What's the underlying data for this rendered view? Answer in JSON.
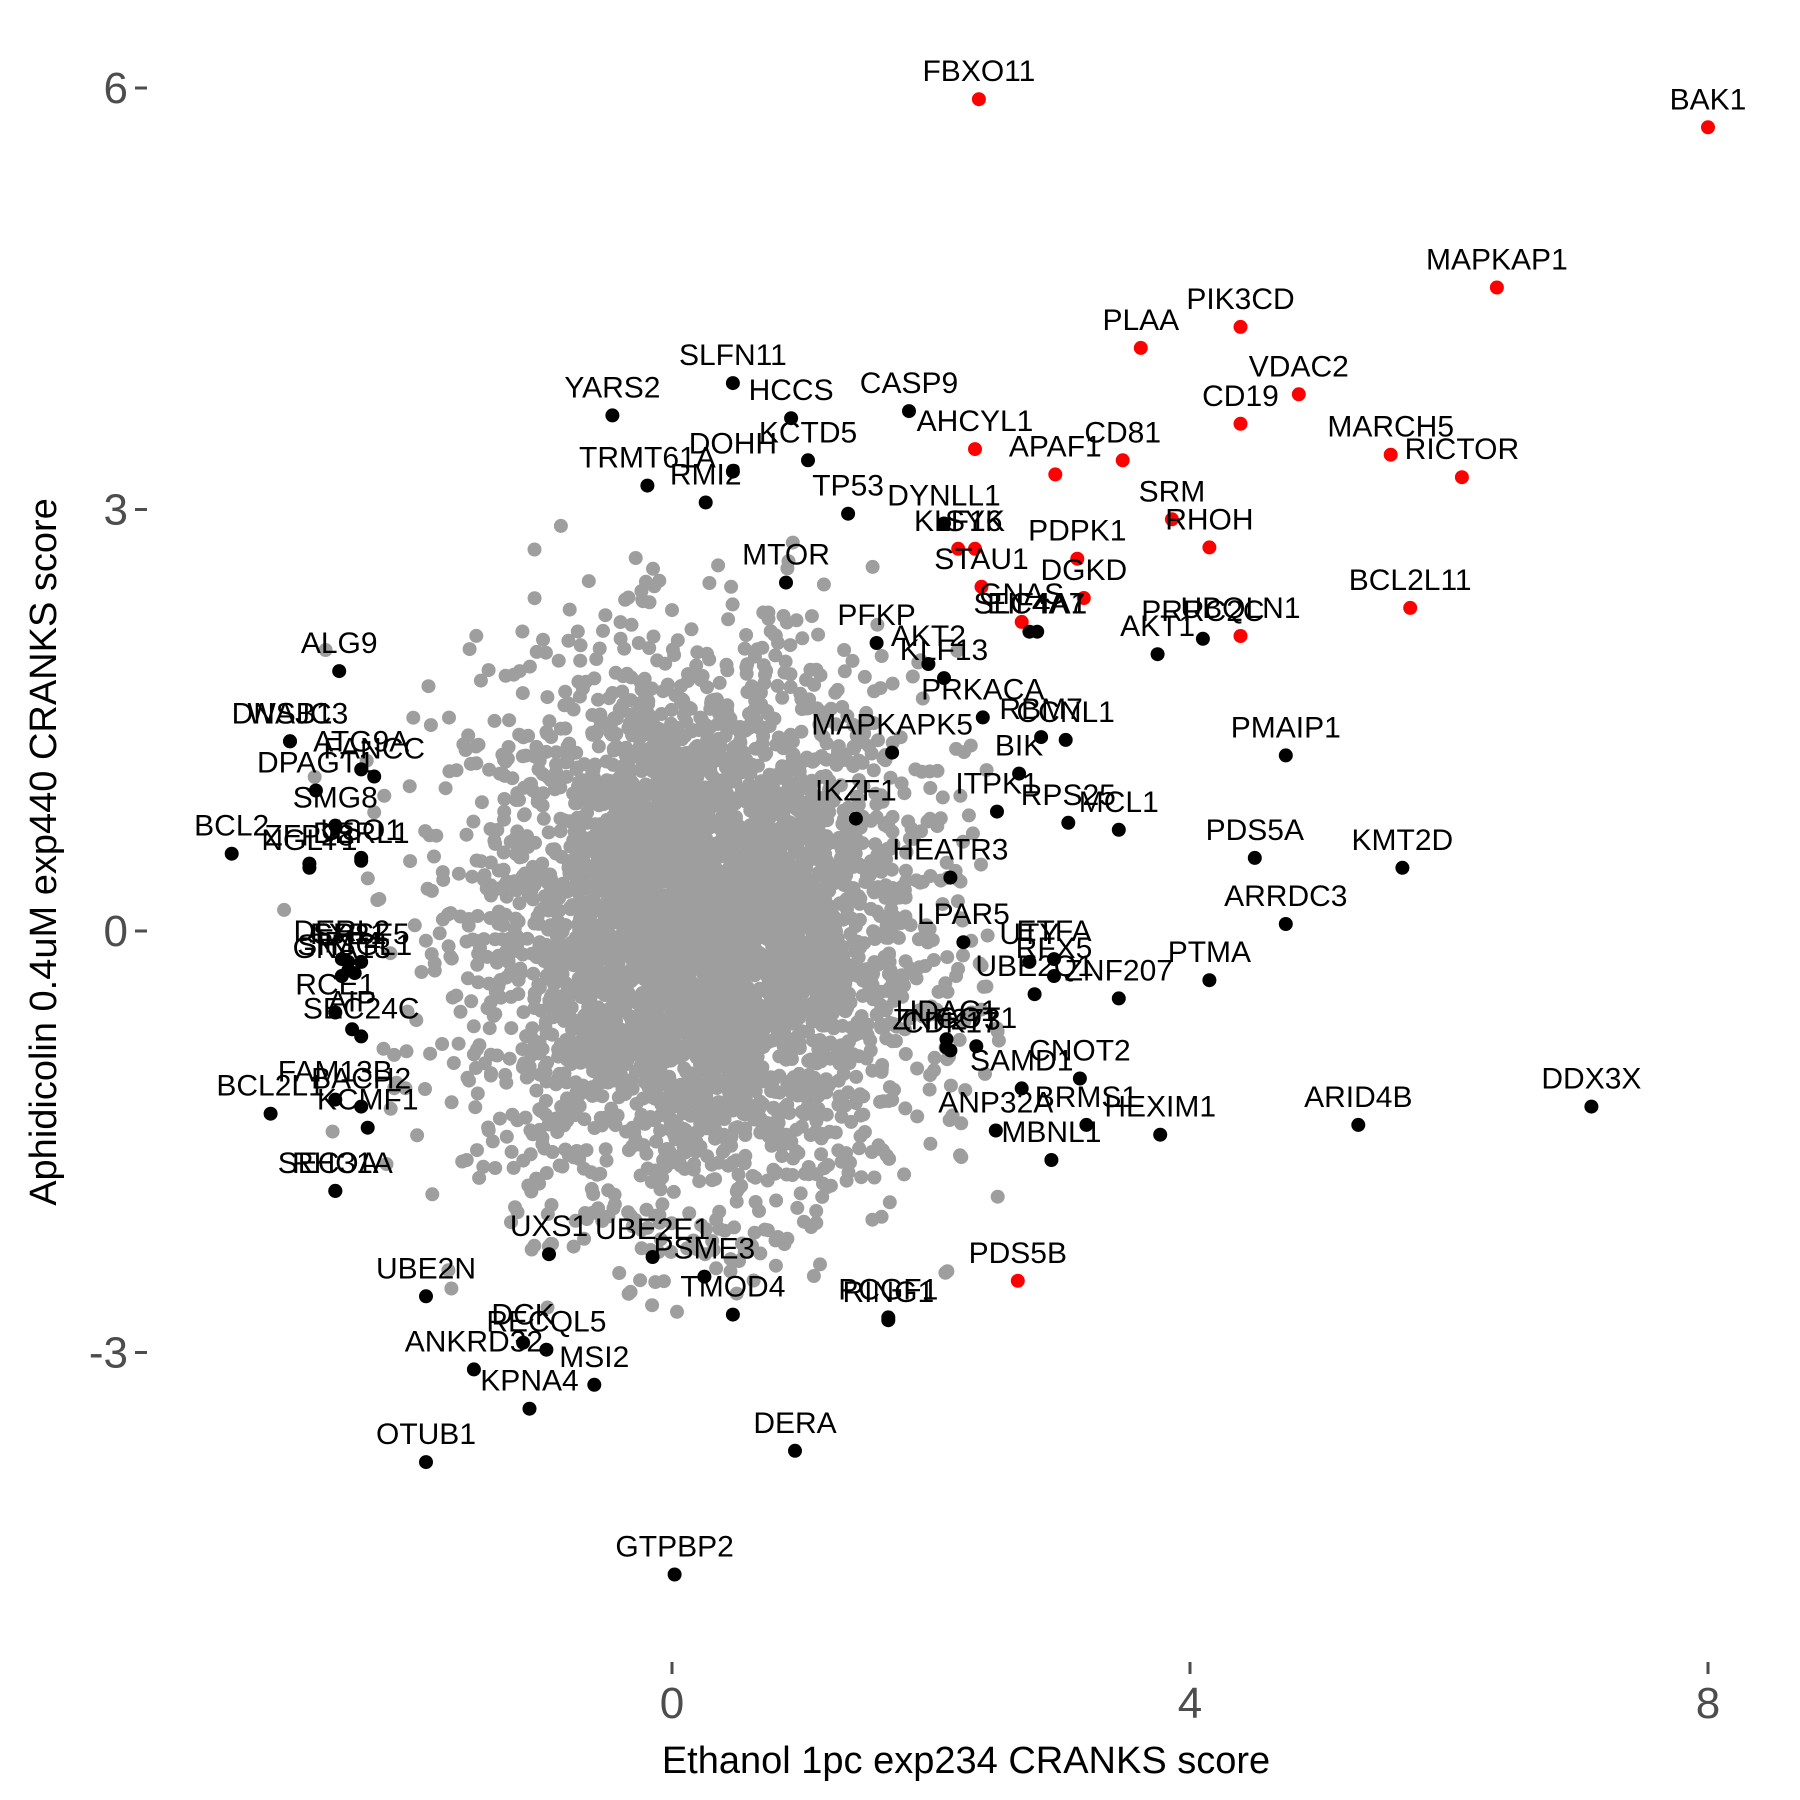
{
  "chart_data": {
    "type": "scatter",
    "title": "",
    "xlabel": "Ethanol 1pc exp234 CRANKS score",
    "ylabel": "Aphidicolin 0.4uM exp440 CRANKS score",
    "xlim": [
      -3.2,
      8.3
    ],
    "ylim": [
      -5.2,
      6.5
    ],
    "x_ticks": [
      0,
      4,
      8
    ],
    "x_tick_labels": [
      "0",
      "4",
      "8"
    ],
    "y_ticks": [
      -3,
      0,
      3,
      6
    ],
    "y_tick_labels": [
      "-3",
      "0",
      "3",
      "6"
    ],
    "grid": false,
    "legend": "none",
    "colors": {
      "background": "#4d4d4d",
      "non_hit": "#9e9e9e",
      "hit": "#000000",
      "top_hit": "#ff0000"
    },
    "background_cloud": {
      "color": "non_hit",
      "center": [
        0.2,
        0.0
      ],
      "spread": [
        0.85,
        0.95
      ],
      "count": 4200
    },
    "labeled_points": [
      {
        "gene": "FBXO11",
        "x": 2.37,
        "y": 5.92,
        "color": "top_hit"
      },
      {
        "gene": "BAK1",
        "x": 8.0,
        "y": 5.72,
        "color": "top_hit"
      },
      {
        "gene": "MAPKAP1",
        "x": 6.37,
        "y": 4.58,
        "color": "top_hit"
      },
      {
        "gene": "PIK3CD",
        "x": 4.39,
        "y": 4.3,
        "color": "top_hit"
      },
      {
        "gene": "PLAA",
        "x": 3.62,
        "y": 4.15,
        "color": "top_hit"
      },
      {
        "gene": "VDAC2",
        "x": 4.84,
        "y": 3.82,
        "color": "top_hit"
      },
      {
        "gene": "MARCH5",
        "x": 5.55,
        "y": 3.39,
        "color": "top_hit"
      },
      {
        "gene": "RICTOR",
        "x": 6.1,
        "y": 3.23,
        "color": "top_hit"
      },
      {
        "gene": "AHCYL1",
        "x": 2.34,
        "y": 3.43,
        "color": "top_hit"
      },
      {
        "gene": "CD81",
        "x": 3.48,
        "y": 3.35,
        "color": "top_hit"
      },
      {
        "gene": "CD19",
        "x": 4.39,
        "y": 3.61,
        "color": "top_hit"
      },
      {
        "gene": "APAF1",
        "x": 2.96,
        "y": 3.25,
        "color": "top_hit"
      },
      {
        "gene": "KLF16",
        "x": 2.21,
        "y": 2.72,
        "color": "top_hit"
      },
      {
        "gene": "SYK",
        "x": 2.34,
        "y": 2.72,
        "color": "top_hit"
      },
      {
        "gene": "PDPK1",
        "x": 3.13,
        "y": 2.65,
        "color": "top_hit"
      },
      {
        "gene": "SRM",
        "x": 3.86,
        "y": 2.93,
        "color": "top_hit"
      },
      {
        "gene": "RHOH",
        "x": 4.15,
        "y": 2.73,
        "color": "top_hit"
      },
      {
        "gene": "BCL2L11",
        "x": 5.7,
        "y": 2.3,
        "color": "top_hit"
      },
      {
        "gene": "STAU1",
        "x": 2.39,
        "y": 2.45,
        "color": "top_hit"
      },
      {
        "gene": "DGKD",
        "x": 3.18,
        "y": 2.37,
        "color": "top_hit"
      },
      {
        "gene": "UBQLN1",
        "x": 4.39,
        "y": 2.1,
        "color": "top_hit"
      },
      {
        "gene": "GNAS",
        "x": 2.7,
        "y": 2.2,
        "color": "top_hit"
      },
      {
        "gene": "PDS5B",
        "x": 2.67,
        "y": -2.49,
        "color": "top_hit"
      },
      {
        "gene": "SLFN11",
        "x": 0.47,
        "y": 3.9,
        "color": "hit"
      },
      {
        "gene": "HCCS",
        "x": 0.92,
        "y": 3.65,
        "color": "hit"
      },
      {
        "gene": "CASP9",
        "x": 1.83,
        "y": 3.7,
        "color": "hit"
      },
      {
        "gene": "YARS2",
        "x": -0.46,
        "y": 3.67,
        "color": "hit"
      },
      {
        "gene": "KCTD5",
        "x": 1.05,
        "y": 3.35,
        "color": "hit"
      },
      {
        "gene": "DOHH",
        "x": 0.47,
        "y": 3.27,
        "color": "hit"
      },
      {
        "gene": "TRMT61A",
        "x": -0.19,
        "y": 3.17,
        "color": "hit"
      },
      {
        "gene": "RMI2",
        "x": 0.26,
        "y": 3.05,
        "color": "hit"
      },
      {
        "gene": "TP53",
        "x": 1.36,
        "y": 2.97,
        "color": "hit"
      },
      {
        "gene": "DYNLL1",
        "x": 2.1,
        "y": 2.9,
        "color": "hit"
      },
      {
        "gene": "MTOR",
        "x": 0.88,
        "y": 2.48,
        "color": "hit"
      },
      {
        "gene": "AKT2",
        "x": 1.98,
        "y": 1.9,
        "color": "hit"
      },
      {
        "gene": "PFKP",
        "x": 1.58,
        "y": 2.05,
        "color": "hit"
      },
      {
        "gene": "KLF13",
        "x": 2.1,
        "y": 1.8,
        "color": "hit"
      },
      {
        "gene": "SLC4A7",
        "x": 2.76,
        "y": 2.13,
        "color": "hit"
      },
      {
        "gene": "AKT1",
        "x": 3.75,
        "y": 1.97,
        "color": "hit"
      },
      {
        "gene": "PRRC2C",
        "x": 4.1,
        "y": 2.08,
        "color": "hit"
      },
      {
        "gene": "EIF4A1",
        "x": 2.82,
        "y": 2.13,
        "color": "hit"
      },
      {
        "gene": "PRKACA",
        "x": 2.4,
        "y": 1.52,
        "color": "hit"
      },
      {
        "gene": "MAPKAPK5",
        "x": 1.7,
        "y": 1.27,
        "color": "hit"
      },
      {
        "gene": "CCNL1",
        "x": 3.04,
        "y": 1.36,
        "color": "hit"
      },
      {
        "gene": "PMAIP1",
        "x": 4.74,
        "y": 1.25,
        "color": "hit"
      },
      {
        "gene": "RBM7",
        "x": 2.85,
        "y": 1.38,
        "color": "hit"
      },
      {
        "gene": "BIK",
        "x": 2.68,
        "y": 1.12,
        "color": "hit"
      },
      {
        "gene": "IKZF1",
        "x": 1.42,
        "y": 0.8,
        "color": "hit"
      },
      {
        "gene": "ITPK1",
        "x": 2.51,
        "y": 0.85,
        "color": "hit"
      },
      {
        "gene": "RPS25",
        "x": 3.06,
        "y": 0.77,
        "color": "hit"
      },
      {
        "gene": "MCL1",
        "x": 3.45,
        "y": 0.72,
        "color": "hit"
      },
      {
        "gene": "PDS5A",
        "x": 4.5,
        "y": 0.52,
        "color": "hit"
      },
      {
        "gene": "KMT2D",
        "x": 5.64,
        "y": 0.45,
        "color": "hit"
      },
      {
        "gene": "HEATR3",
        "x": 2.15,
        "y": 0.38,
        "color": "hit"
      },
      {
        "gene": "ARRDC3",
        "x": 4.74,
        "y": 0.05,
        "color": "hit"
      },
      {
        "gene": "LPAR5",
        "x": 2.25,
        "y": -0.08,
        "color": "hit"
      },
      {
        "gene": "UTY",
        "x": 2.76,
        "y": -0.22,
        "color": "hit"
      },
      {
        "gene": "ETFA",
        "x": 2.95,
        "y": -0.2,
        "color": "hit"
      },
      {
        "gene": "RFX5",
        "x": 2.95,
        "y": -0.32,
        "color": "hit"
      },
      {
        "gene": "PTMA",
        "x": 4.15,
        "y": -0.35,
        "color": "hit"
      },
      {
        "gene": "UBE2Q1",
        "x": 2.8,
        "y": -0.45,
        "color": "hit"
      },
      {
        "gene": "ZNF207",
        "x": 3.45,
        "y": -0.48,
        "color": "hit"
      },
      {
        "gene": "HDAC1",
        "x": 2.12,
        "y": -0.77,
        "color": "hit"
      },
      {
        "gene": "GOT1",
        "x": 2.35,
        "y": -0.82,
        "color": "hit"
      },
      {
        "gene": "ZNF273",
        "x": 2.12,
        "y": -0.83,
        "color": "hit"
      },
      {
        "gene": "CDK17",
        "x": 2.15,
        "y": -0.85,
        "color": "hit"
      },
      {
        "gene": "CNOT2",
        "x": 3.15,
        "y": -1.05,
        "color": "hit"
      },
      {
        "gene": "SAMD1",
        "x": 2.7,
        "y": -1.12,
        "color": "hit"
      },
      {
        "gene": "ARID4B",
        "x": 5.3,
        "y": -1.38,
        "color": "hit"
      },
      {
        "gene": "DDX3X",
        "x": 7.1,
        "y": -1.25,
        "color": "hit"
      },
      {
        "gene": "HEXIM1",
        "x": 3.77,
        "y": -1.45,
        "color": "hit"
      },
      {
        "gene": "ANP32A",
        "x": 2.5,
        "y": -1.42,
        "color": "hit"
      },
      {
        "gene": "BRMS1",
        "x": 3.2,
        "y": -1.38,
        "color": "hit"
      },
      {
        "gene": "MBNL1",
        "x": 2.93,
        "y": -1.63,
        "color": "hit"
      },
      {
        "gene": "PCGF1",
        "x": 1.67,
        "y": -2.75,
        "color": "hit"
      },
      {
        "gene": "RING1",
        "x": 1.67,
        "y": -2.77,
        "color": "hit"
      },
      {
        "gene": "PSME3",
        "x": 0.25,
        "y": -2.46,
        "color": "hit"
      },
      {
        "gene": "TMOD4",
        "x": 0.47,
        "y": -2.73,
        "color": "hit"
      },
      {
        "gene": "UBE2E1",
        "x": -0.15,
        "y": -2.32,
        "color": "hit"
      },
      {
        "gene": "UXS1",
        "x": -0.95,
        "y": -2.3,
        "color": "hit"
      },
      {
        "gene": "DERA",
        "x": 0.95,
        "y": -3.7,
        "color": "hit"
      },
      {
        "gene": "GTPBP2",
        "x": 0.02,
        "y": -4.58,
        "color": "hit"
      },
      {
        "gene": "RECQL5",
        "x": -0.97,
        "y": -2.98,
        "color": "hit"
      },
      {
        "gene": "MSI2",
        "x": -0.6,
        "y": -3.23,
        "color": "hit"
      },
      {
        "gene": "DCK",
        "x": -1.15,
        "y": -2.93,
        "color": "hit"
      },
      {
        "gene": "KPNA4",
        "x": -1.1,
        "y": -3.4,
        "color": "hit"
      },
      {
        "gene": "ANKRD32",
        "x": -1.53,
        "y": -3.12,
        "color": "hit"
      },
      {
        "gene": "OTUB1",
        "x": -1.9,
        "y": -3.78,
        "color": "hit"
      },
      {
        "gene": "UBE2N",
        "x": -1.9,
        "y": -2.6,
        "color": "hit"
      },
      {
        "gene": "RHOA",
        "x": -2.6,
        "y": -1.85,
        "color": "hit"
      },
      {
        "gene": "SEC31A",
        "x": -2.6,
        "y": -1.85,
        "color": "hit"
      },
      {
        "gene": "BCL2L1",
        "x": -3.1,
        "y": -1.3,
        "color": "hit"
      },
      {
        "gene": "FAM13B",
        "x": -2.6,
        "y": -1.2,
        "color": "hit"
      },
      {
        "gene": "KCMF1",
        "x": -2.35,
        "y": -1.4,
        "color": "hit"
      },
      {
        "gene": "BACH2",
        "x": -2.4,
        "y": -1.25,
        "color": "hit"
      },
      {
        "gene": "RCE1",
        "x": -2.6,
        "y": -0.58,
        "color": "hit"
      },
      {
        "gene": "AIP",
        "x": -2.47,
        "y": -0.7,
        "color": "hit"
      },
      {
        "gene": "SEC24C",
        "x": -2.4,
        "y": -0.75,
        "color": "hit"
      },
      {
        "gene": "GNA13",
        "x": -2.55,
        "y": -0.32,
        "color": "hit"
      },
      {
        "gene": "IRF4",
        "x": -2.5,
        "y": -0.28,
        "color": "hit"
      },
      {
        "gene": "SH3GL1",
        "x": -2.45,
        "y": -0.3,
        "color": "hit"
      },
      {
        "gene": "DERL2",
        "x": -2.55,
        "y": -0.2,
        "color": "hit"
      },
      {
        "gene": "FXR1",
        "x": -2.5,
        "y": -0.22,
        "color": "hit"
      },
      {
        "gene": "SRSF5",
        "x": -2.4,
        "y": -0.22,
        "color": "hit"
      },
      {
        "gene": "BCL2",
        "x": -3.4,
        "y": 0.55,
        "color": "hit"
      },
      {
        "gene": "NGLY1",
        "x": -2.8,
        "y": 0.45,
        "color": "hit"
      },
      {
        "gene": "DERL1",
        "x": -2.4,
        "y": 0.5,
        "color": "hit"
      },
      {
        "gene": "ZFP28",
        "x": -2.8,
        "y": 0.48,
        "color": "hit"
      },
      {
        "gene": "USO1",
        "x": -2.4,
        "y": 0.52,
        "color": "hit"
      },
      {
        "gene": "SMG8",
        "x": -2.6,
        "y": 0.75,
        "color": "hit"
      },
      {
        "gene": "DPAGT1",
        "x": -2.75,
        "y": 1.0,
        "color": "hit"
      },
      {
        "gene": "FANCC",
        "x": -2.3,
        "y": 1.1,
        "color": "hit"
      },
      {
        "gene": "DNAJC3",
        "x": -2.95,
        "y": 1.35,
        "color": "hit"
      },
      {
        "gene": "ATG9A",
        "x": -2.4,
        "y": 1.15,
        "color": "hit"
      },
      {
        "gene": "WSB1",
        "x": -2.95,
        "y": 1.35,
        "color": "hit"
      },
      {
        "gene": "ALG9",
        "x": -2.57,
        "y": 1.85,
        "color": "hit"
      }
    ]
  }
}
